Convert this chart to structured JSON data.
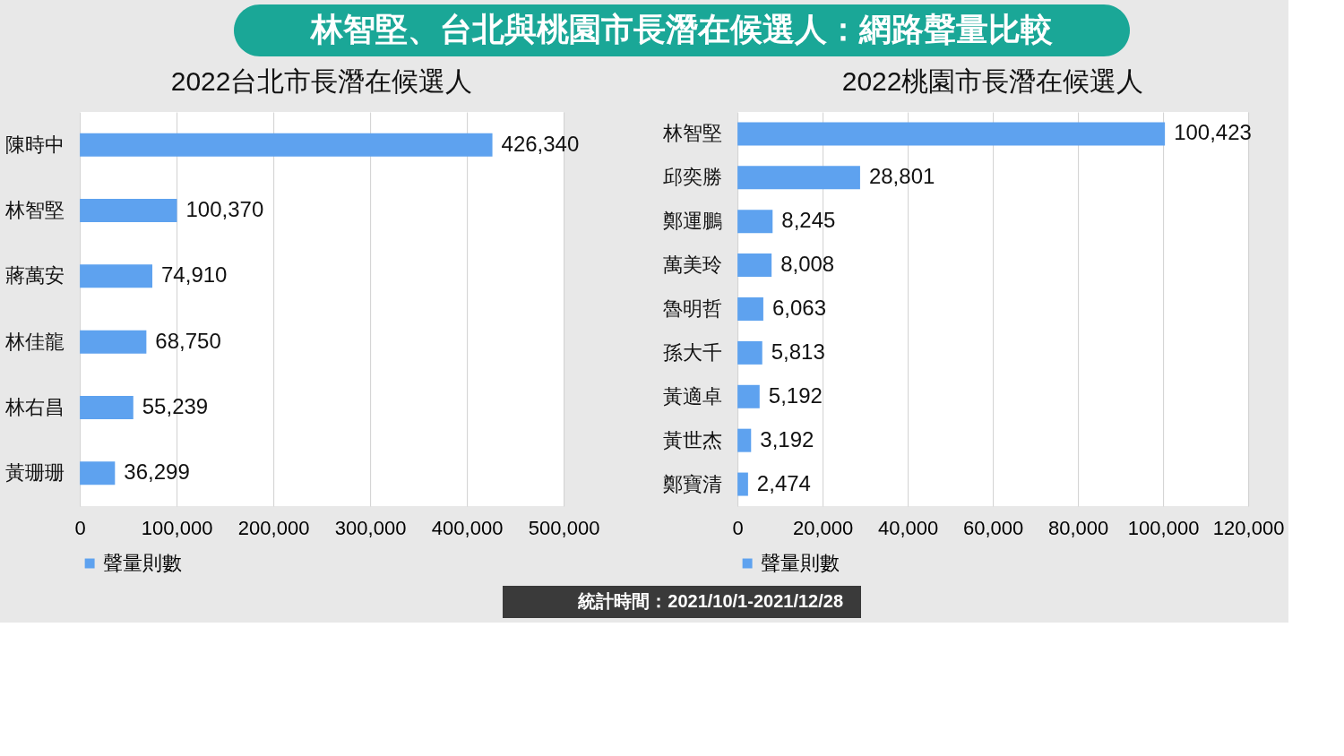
{
  "chart_data": [
    {
      "type": "bar",
      "orientation": "horizontal",
      "title": "2022台北市長潛在候選人",
      "categories": [
        "陳時中",
        "林智堅",
        "蔣萬安",
        "林佳龍",
        "林右昌",
        "黃珊珊"
      ],
      "series": [
        {
          "name": "聲量則數",
          "color": "#5ea2ef",
          "values": [
            426340,
            100370,
            74910,
            68750,
            55239,
            36299
          ],
          "value_labels": [
            "426,340",
            "100,370",
            "74,910",
            "68,750",
            "55,239",
            "36,299"
          ]
        }
      ],
      "xlim": [
        0,
        500000
      ],
      "xticks": [
        0,
        {
          "value": 100000,
          "label": "100,000"
        },
        {
          "value": 200000,
          "label": "200,000"
        },
        {
          "value": 300000,
          "label": "300,000"
        },
        {
          "value": 400000,
          "label": "400,000"
        },
        {
          "value": 500000,
          "label": "500,000"
        }
      ],
      "grid": "x",
      "legend": "bottom",
      "annotations": [
        "林智堅、台北與桃園市長潛在候選人：網路聲量比較"
      ]
    },
    {
      "type": "bar",
      "orientation": "horizontal",
      "title": "2022桃園市長潛在候選人",
      "categories": [
        "林智堅",
        "邱奕勝",
        "鄭運鵬",
        "萬美玲",
        "魯明哲",
        "孫大千",
        "黃適卓",
        "黃世杰",
        "鄭寶清"
      ],
      "series": [
        {
          "name": "聲量則數",
          "color": "#5ea2ef",
          "values": [
            100423,
            28801,
            8245,
            8008,
            6063,
            5813,
            5192,
            3192,
            2474
          ],
          "value_labels": [
            "100,423",
            "28,801",
            "8,245",
            "8,008",
            "6,063",
            "5,813",
            "5,192",
            "3,192",
            "2,474"
          ]
        }
      ],
      "xlim": [
        0,
        120000
      ],
      "xticks": [
        0,
        {
          "value": 20000,
          "label": "20,000"
        },
        {
          "value": 40000,
          "label": "40,000"
        },
        {
          "value": 60000,
          "label": "60,000"
        },
        {
          "value": 80000,
          "label": "80,000"
        },
        {
          "value": 100000,
          "label": "100,000"
        },
        {
          "value": 120000,
          "label": "120,000"
        }
      ],
      "grid": "x",
      "legend": "bottom",
      "annotations": [
        "統計時間：2021/10/1-2021/12/28"
      ]
    }
  ]
}
